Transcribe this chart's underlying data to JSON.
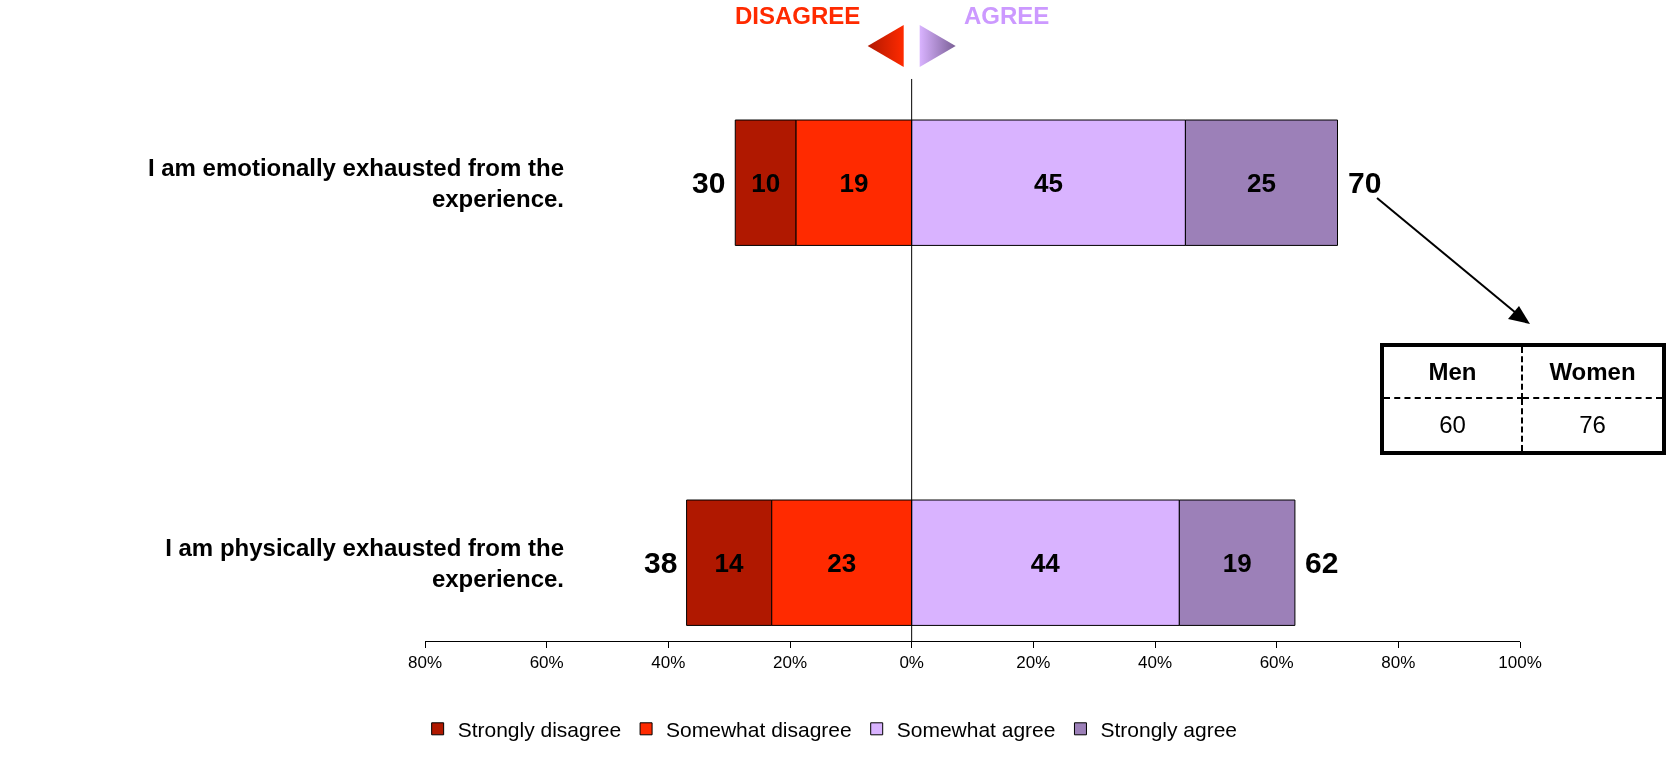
{
  "chart_data": {
    "type": "bar",
    "orientation": "horizontal",
    "categories": [
      "I am emotionally exhausted from the experience.",
      "I am physically exhausted from the experience."
    ],
    "series": [
      {
        "name": "Strongly disagree",
        "color": "#b01800",
        "values": [
          10,
          14
        ],
        "base": [
          -29,
          -37
        ]
      },
      {
        "name": "Somewhat disagree",
        "color": "#ff2a00",
        "values": [
          19,
          23
        ],
        "base": [
          -19,
          -23
        ]
      },
      {
        "name": "Somewhat agree",
        "color": "#d9b3ff",
        "values": [
          45,
          44
        ],
        "base": [
          0,
          0
        ]
      },
      {
        "name": "Strongly agree",
        "color": "#9c80b8",
        "values": [
          25,
          19
        ],
        "base": [
          45,
          44
        ]
      }
    ],
    "xlim": [
      -80,
      100
    ],
    "xticks": [
      {
        "value": -80,
        "label": "80%"
      },
      {
        "value": -60,
        "label": "60%"
      },
      {
        "value": -40,
        "label": "40%"
      },
      {
        "value": -20,
        "label": "20%"
      },
      {
        "value": 0,
        "label": "0%"
      },
      {
        "value": 20,
        "label": "20%"
      },
      {
        "value": 40,
        "label": "40%"
      },
      {
        "value": 60,
        "label": "60%"
      },
      {
        "value": 80,
        "label": "80%"
      },
      {
        "value": 100,
        "label": "100%"
      }
    ],
    "ref_lines": [
      {
        "axis": "x",
        "value": 0,
        "color": "#000000"
      }
    ],
    "annotations": [
      "DISAGREE",
      "AGREE",
      "Men",
      "Women",
      "60",
      "76",
      {
        "text": "30",
        "x": -29,
        "y": "I am emotionally exhausted from the experience."
      },
      {
        "text": "70",
        "x": 70,
        "y": "I am emotionally exhausted from the experience."
      },
      {
        "text": "38",
        "x": -37,
        "y": "I am physically exhausted from the experience."
      },
      {
        "text": "62",
        "x": 63,
        "y": "I am physically exhausted from the experience."
      }
    ],
    "data_labels": true,
    "legend": "bottom"
  }
}
